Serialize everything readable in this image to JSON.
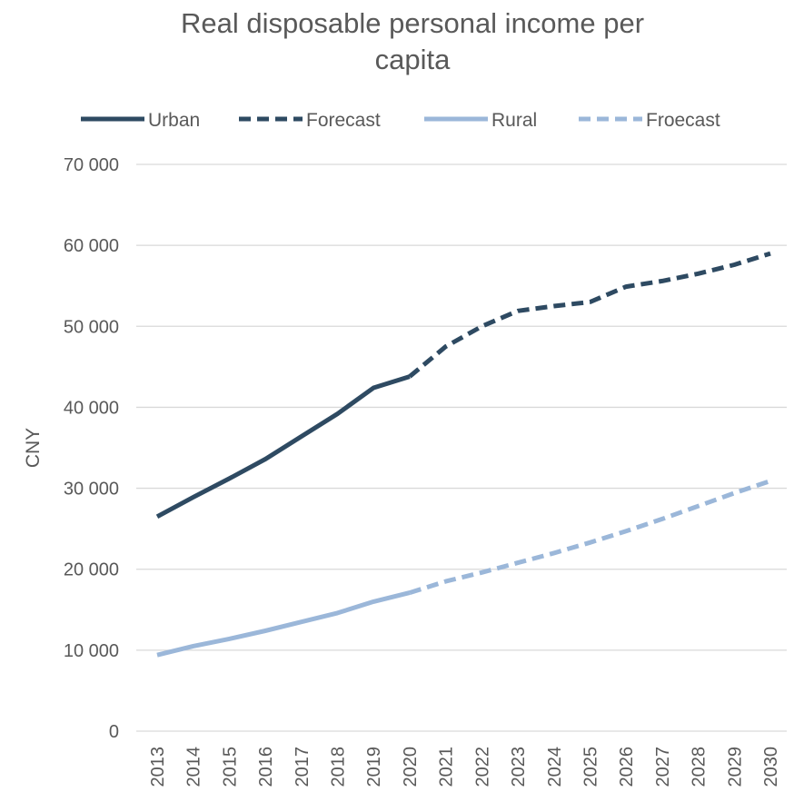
{
  "chart_data": {
    "type": "line",
    "title_lines": [
      "Real disposable personal income per",
      "capita"
    ],
    "xlabel": "",
    "ylabel": "CNY",
    "ylim": [
      0,
      70000
    ],
    "yticks": [
      0,
      10000,
      20000,
      30000,
      40000,
      50000,
      60000,
      70000
    ],
    "ytick_labels": [
      "0",
      "10 000",
      "20 000",
      "30 000",
      "40 000",
      "50 000",
      "60 000",
      "70 000"
    ],
    "categories": [
      "2013",
      "2014",
      "2015",
      "2016",
      "2017",
      "2018",
      "2019",
      "2020",
      "2021",
      "2022",
      "2023",
      "2024",
      "2025",
      "2026",
      "2027",
      "2028",
      "2029",
      "2030"
    ],
    "grid": true,
    "legend_position": "top",
    "series": [
      {
        "name": "Urban",
        "color": "#2e4a62",
        "style": "solid",
        "values": [
          26500,
          28900,
          31200,
          33600,
          36400,
          39200,
          42400,
          43800,
          null,
          null,
          null,
          null,
          null,
          null,
          null,
          null,
          null,
          null
        ]
      },
      {
        "name": "Forecast",
        "color": "#2e4a62",
        "style": "dashed",
        "values": [
          null,
          null,
          null,
          null,
          null,
          null,
          null,
          43800,
          47500,
          50000,
          51900,
          52500,
          53000,
          54900,
          55600,
          56500,
          57600,
          59000
        ]
      },
      {
        "name": "Rural",
        "color": "#9bb7d9",
        "style": "solid",
        "values": [
          9400,
          10500,
          11400,
          12400,
          13500,
          14600,
          16000,
          17100,
          null,
          null,
          null,
          null,
          null,
          null,
          null,
          null,
          null,
          null
        ]
      },
      {
        "name": "Froecast",
        "color": "#9bb7d9",
        "style": "dashed",
        "values": [
          null,
          null,
          null,
          null,
          null,
          null,
          null,
          17100,
          18500,
          19600,
          20800,
          22000,
          23300,
          24700,
          26200,
          27800,
          29400,
          30900
        ]
      }
    ]
  }
}
